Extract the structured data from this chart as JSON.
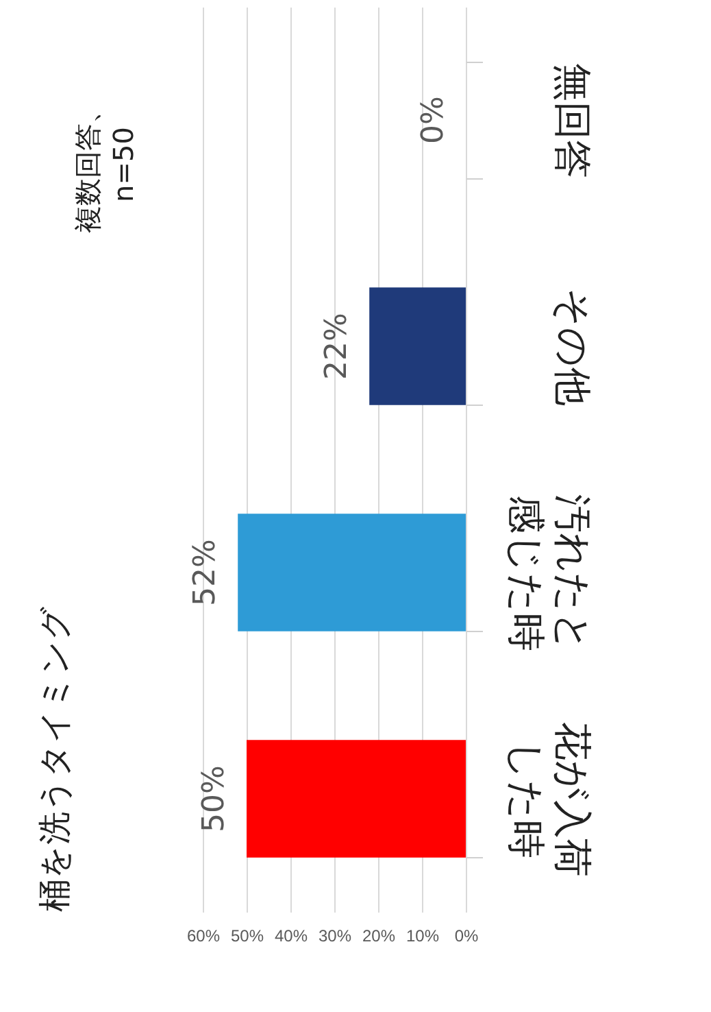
{
  "chart_data": {
    "type": "bar",
    "orientation": "horizontal",
    "title": "桶を洗うタイミング",
    "categories": [
      "無回答",
      "その他",
      "汚れたと感じた時",
      "花が入荷した時"
    ],
    "values": [
      0,
      22,
      52,
      50
    ],
    "colors": [
      "#7f7f7f",
      "#1f3a7a",
      "#2e9bd6",
      "#ff0000"
    ],
    "xlim": [
      60,
      0
    ],
    "xticks": [
      {
        "value": 60,
        "label": "60%"
      },
      {
        "value": 50,
        "label": "50%"
      },
      {
        "value": 40,
        "label": "40%"
      },
      {
        "value": 30,
        "label": "30%"
      },
      {
        "value": 20,
        "label": "20%"
      },
      {
        "value": 10,
        "label": "10%"
      },
      {
        "value": 0,
        "label": "0%"
      }
    ],
    "value_labels": [
      "0%",
      "22%",
      "52%",
      "50%"
    ],
    "annotations": [
      "複数回答、n=50"
    ],
    "grid": true
  }
}
